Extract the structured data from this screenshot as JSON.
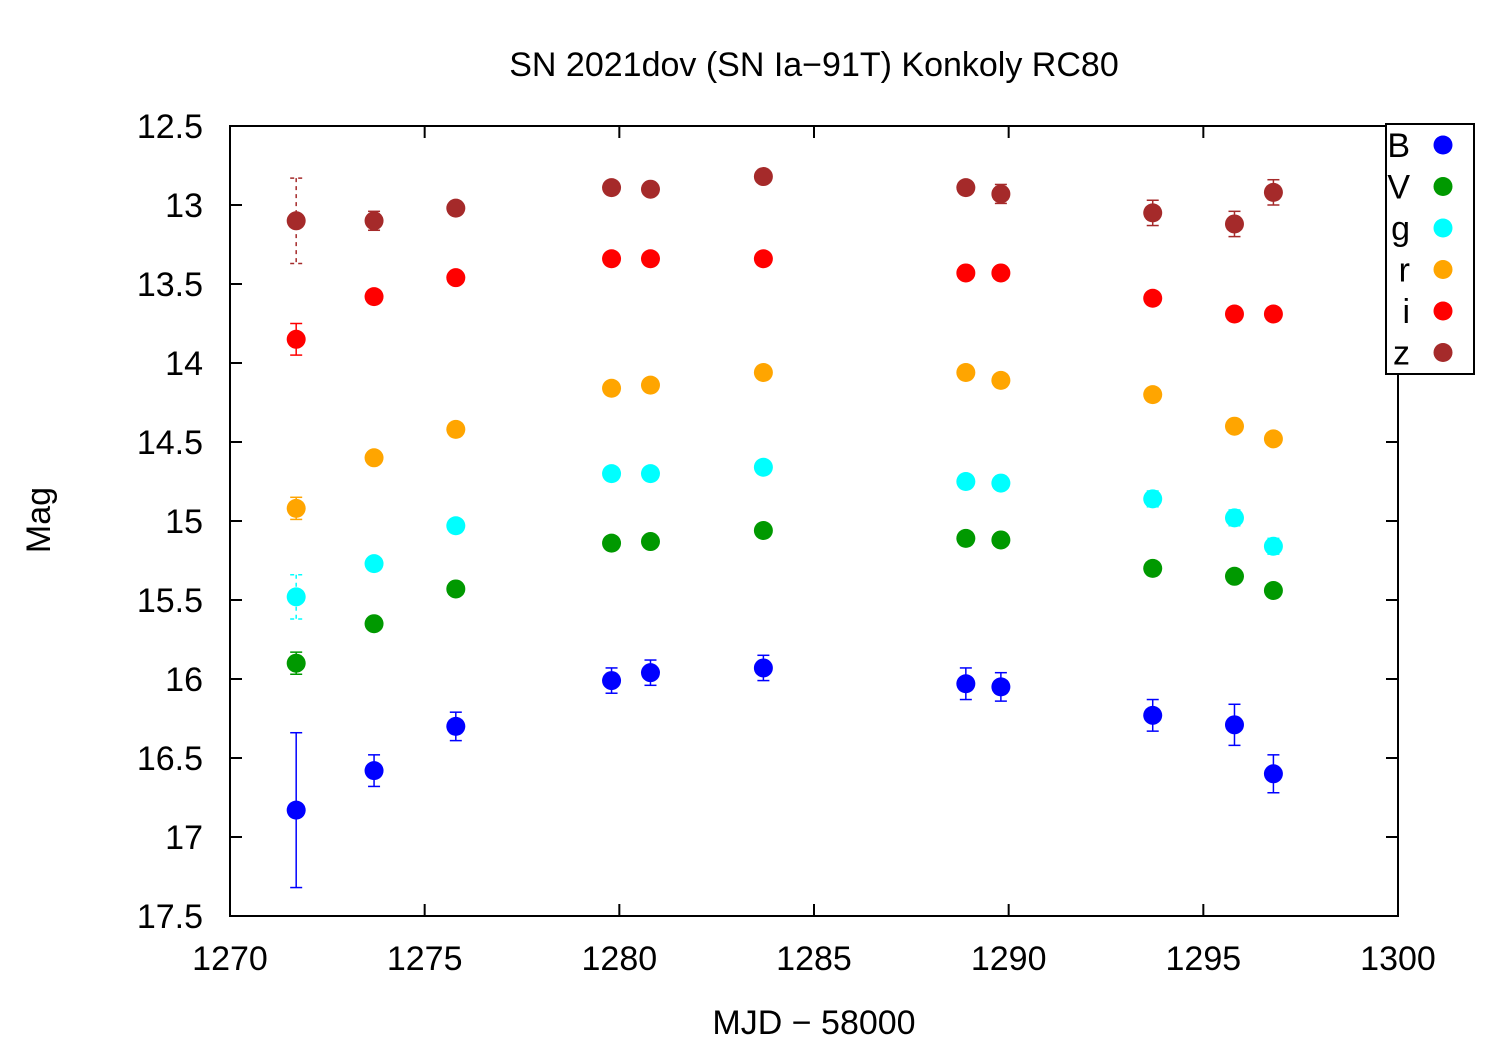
{
  "chart_data": {
    "type": "scatter",
    "title": "SN 2021dov (SN Ia−91T) Konkoly RC80",
    "xlabel": "MJD − 58000",
    "ylabel": "Mag",
    "xlim": [
      1270,
      1300
    ],
    "ylim": [
      12.5,
      17.5
    ],
    "y_inverted": true,
    "x_ticks": [
      "1270",
      "1275",
      "1280",
      "1285",
      "1290",
      "1295",
      "1300"
    ],
    "y_ticks": [
      "12.5",
      "13",
      "13.5",
      "14",
      "14.5",
      "15",
      "15.5",
      "16",
      "16.5",
      "17",
      "17.5"
    ],
    "legend_position": "top-right",
    "grid": false,
    "series": [
      {
        "name": "B",
        "color": "#0000ff",
        "points": [
          {
            "x": 1271.7,
            "y": 16.83,
            "err": 0.49
          },
          {
            "x": 1273.7,
            "y": 16.58,
            "err": 0.1
          },
          {
            "x": 1275.8,
            "y": 16.3,
            "err": 0.09
          },
          {
            "x": 1279.8,
            "y": 16.01,
            "err": 0.08
          },
          {
            "x": 1280.8,
            "y": 15.96,
            "err": 0.08
          },
          {
            "x": 1283.7,
            "y": 15.93,
            "err": 0.08
          },
          {
            "x": 1288.9,
            "y": 16.03,
            "err": 0.1
          },
          {
            "x": 1289.8,
            "y": 16.05,
            "err": 0.09
          },
          {
            "x": 1293.7,
            "y": 16.23,
            "err": 0.1
          },
          {
            "x": 1295.8,
            "y": 16.29,
            "err": 0.13
          },
          {
            "x": 1296.8,
            "y": 16.6,
            "err": 0.12
          }
        ]
      },
      {
        "name": "V",
        "color": "#009900",
        "points": [
          {
            "x": 1271.7,
            "y": 15.9,
            "err": 0.07
          },
          {
            "x": 1273.7,
            "y": 15.65,
            "err": 0.03
          },
          {
            "x": 1275.8,
            "y": 15.43,
            "err": 0.03
          },
          {
            "x": 1279.8,
            "y": 15.14,
            "err": 0.03
          },
          {
            "x": 1280.8,
            "y": 15.13,
            "err": 0.03
          },
          {
            "x": 1283.7,
            "y": 15.06,
            "err": 0.03
          },
          {
            "x": 1288.9,
            "y": 15.11,
            "err": 0.03
          },
          {
            "x": 1289.8,
            "y": 15.12,
            "err": 0.03
          },
          {
            "x": 1293.7,
            "y": 15.3,
            "err": 0.03
          },
          {
            "x": 1295.8,
            "y": 15.35,
            "err": 0.03
          },
          {
            "x": 1296.8,
            "y": 15.44,
            "err": 0.03
          }
        ]
      },
      {
        "name": "g",
        "color": "#00ffff",
        "points": [
          {
            "x": 1271.7,
            "y": 15.48,
            "err": 0.14
          },
          {
            "x": 1273.7,
            "y": 15.27,
            "err": 0.03
          },
          {
            "x": 1275.8,
            "y": 15.03,
            "err": 0.03
          },
          {
            "x": 1279.8,
            "y": 14.7,
            "err": 0.03
          },
          {
            "x": 1280.8,
            "y": 14.7,
            "err": 0.03
          },
          {
            "x": 1283.7,
            "y": 14.66,
            "err": 0.03
          },
          {
            "x": 1288.9,
            "y": 14.75,
            "err": 0.03
          },
          {
            "x": 1289.8,
            "y": 14.76,
            "err": 0.03
          },
          {
            "x": 1293.7,
            "y": 14.86,
            "err": 0.05
          },
          {
            "x": 1295.8,
            "y": 14.98,
            "err": 0.05
          },
          {
            "x": 1296.8,
            "y": 15.16,
            "err": 0.05
          }
        ]
      },
      {
        "name": "r",
        "color": "#ffa500",
        "points": [
          {
            "x": 1271.7,
            "y": 14.92,
            "err": 0.07
          },
          {
            "x": 1273.7,
            "y": 14.6,
            "err": 0.03
          },
          {
            "x": 1275.8,
            "y": 14.42,
            "err": 0.03
          },
          {
            "x": 1279.8,
            "y": 14.16,
            "err": 0.03
          },
          {
            "x": 1280.8,
            "y": 14.14,
            "err": 0.03
          },
          {
            "x": 1283.7,
            "y": 14.06,
            "err": 0.03
          },
          {
            "x": 1288.9,
            "y": 14.06,
            "err": 0.03
          },
          {
            "x": 1289.8,
            "y": 14.11,
            "err": 0.03
          },
          {
            "x": 1293.7,
            "y": 14.2,
            "err": 0.03
          },
          {
            "x": 1295.8,
            "y": 14.4,
            "err": 0.03
          },
          {
            "x": 1296.8,
            "y": 14.48,
            "err": 0.03
          }
        ]
      },
      {
        "name": "i",
        "color": "#ff0000",
        "points": [
          {
            "x": 1271.7,
            "y": 13.85,
            "err": 0.1
          },
          {
            "x": 1273.7,
            "y": 13.58,
            "err": 0.03
          },
          {
            "x": 1275.8,
            "y": 13.46,
            "err": 0.03
          },
          {
            "x": 1279.8,
            "y": 13.34,
            "err": 0.03
          },
          {
            "x": 1280.8,
            "y": 13.34,
            "err": 0.03
          },
          {
            "x": 1283.7,
            "y": 13.34,
            "err": 0.03
          },
          {
            "x": 1288.9,
            "y": 13.43,
            "err": 0.03
          },
          {
            "x": 1289.8,
            "y": 13.43,
            "err": 0.03
          },
          {
            "x": 1293.7,
            "y": 13.59,
            "err": 0.03
          },
          {
            "x": 1295.8,
            "y": 13.69,
            "err": 0.03
          },
          {
            "x": 1296.8,
            "y": 13.69,
            "err": 0.04
          }
        ]
      },
      {
        "name": "z",
        "color": "#a52a2a",
        "points": [
          {
            "x": 1271.7,
            "y": 13.1,
            "err": 0.27
          },
          {
            "x": 1273.7,
            "y": 13.1,
            "err": 0.06
          },
          {
            "x": 1275.8,
            "y": 13.02,
            "err": 0.03
          },
          {
            "x": 1279.8,
            "y": 12.89,
            "err": 0.04
          },
          {
            "x": 1280.8,
            "y": 12.9,
            "err": 0.03
          },
          {
            "x": 1283.7,
            "y": 12.82,
            "err": 0.03
          },
          {
            "x": 1288.9,
            "y": 12.89,
            "err": 0.04
          },
          {
            "x": 1289.8,
            "y": 12.93,
            "err": 0.06
          },
          {
            "x": 1293.7,
            "y": 13.05,
            "err": 0.08
          },
          {
            "x": 1295.8,
            "y": 13.12,
            "err": 0.08
          },
          {
            "x": 1296.8,
            "y": 12.92,
            "err": 0.08
          }
        ]
      }
    ]
  }
}
